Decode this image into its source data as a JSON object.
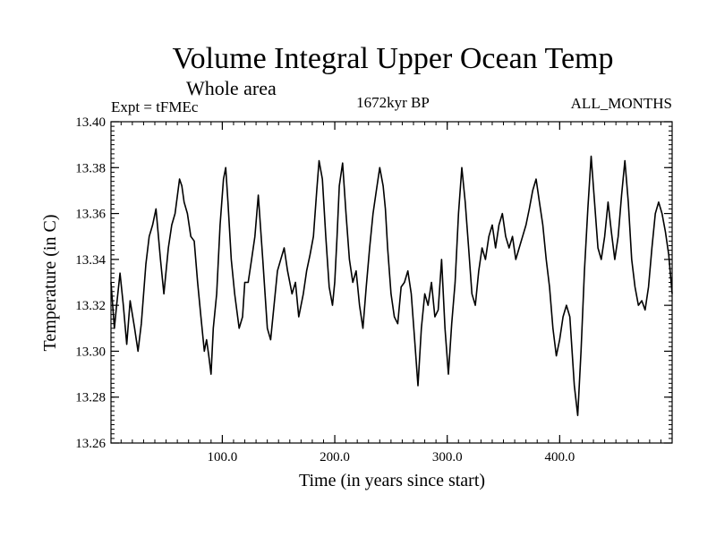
{
  "chart_data": {
    "type": "line",
    "title": "Volume Integral Upper Ocean Temp",
    "subtitle": "Whole area",
    "experiment": "Expt = tFMEc",
    "period": "1672kyr BP",
    "months": "ALL_MONTHS",
    "xlabel": "Time (in years since start)",
    "ylabel": "Temperature (in C)",
    "xlim": [
      1,
      500
    ],
    "ylim": [
      13.26,
      13.4
    ],
    "x_ticks": [
      "100.0",
      "200.0",
      "300.0",
      "400.0"
    ],
    "x_tick_values": [
      100,
      200,
      300,
      400
    ],
    "y_ticks": [
      "13.26",
      "13.28",
      "13.30",
      "13.32",
      "13.34",
      "13.36",
      "13.38",
      "13.40"
    ],
    "y_tick_values": [
      13.26,
      13.28,
      13.3,
      13.32,
      13.34,
      13.36,
      13.38,
      13.4
    ],
    "grid": false,
    "series": [
      {
        "name": "Volume integral upper ocean temperature",
        "color": "#000000",
        "x": [
          1,
          4,
          6,
          9,
          12,
          15,
          18,
          22,
          25,
          28,
          32,
          35,
          38,
          41,
          45,
          48,
          52,
          55,
          58,
          62,
          64,
          66,
          69,
          72,
          75,
          78,
          81,
          84,
          86,
          88,
          90,
          92,
          95,
          98,
          101,
          103,
          105,
          108,
          111,
          115,
          118,
          120,
          123,
          126,
          129,
          132,
          136,
          140,
          143,
          146,
          149,
          152,
          155,
          158,
          162,
          165,
          168,
          172,
          175,
          178,
          181,
          184,
          186,
          189,
          192,
          195,
          198,
          200,
          202,
          204,
          207,
          210,
          213,
          216,
          219,
          222,
          225,
          228,
          231,
          234,
          237,
          240,
          243,
          245,
          247,
          250,
          253,
          256,
          259,
          262,
          265,
          268,
          271,
          274,
          277,
          280,
          283,
          286,
          289,
          292,
          295,
          298,
          301,
          304,
          307,
          310,
          313,
          316,
          319,
          322,
          325,
          328,
          331,
          334,
          337,
          340,
          343,
          346,
          349,
          352,
          355,
          358,
          361,
          364,
          367,
          370,
          373,
          376,
          379,
          382,
          385,
          388,
          391,
          394,
          397,
          400,
          403,
          406,
          409,
          411,
          413,
          416,
          419,
          422,
          425,
          428,
          431,
          434,
          437,
          440,
          443,
          446,
          449,
          452,
          455,
          458,
          461,
          464,
          467,
          470,
          473,
          476,
          479,
          482,
          485,
          488,
          491,
          494,
          497,
          500
        ],
        "values": [
          13.33,
          13.31,
          13.32,
          13.334,
          13.32,
          13.303,
          13.322,
          13.31,
          13.3,
          13.312,
          13.338,
          13.35,
          13.355,
          13.362,
          13.34,
          13.325,
          13.345,
          13.355,
          13.36,
          13.375,
          13.372,
          13.365,
          13.36,
          13.35,
          13.348,
          13.33,
          13.315,
          13.3,
          13.305,
          13.298,
          13.29,
          13.31,
          13.325,
          13.355,
          13.375,
          13.38,
          13.365,
          13.34,
          13.325,
          13.31,
          13.315,
          13.33,
          13.33,
          13.34,
          13.35,
          13.368,
          13.34,
          13.31,
          13.305,
          13.32,
          13.335,
          13.34,
          13.345,
          13.335,
          13.325,
          13.33,
          13.315,
          13.325,
          13.335,
          13.342,
          13.35,
          13.37,
          13.383,
          13.375,
          13.35,
          13.328,
          13.32,
          13.33,
          13.35,
          13.372,
          13.382,
          13.36,
          13.34,
          13.33,
          13.335,
          13.32,
          13.31,
          13.328,
          13.345,
          13.36,
          13.37,
          13.38,
          13.372,
          13.362,
          13.345,
          13.325,
          13.315,
          13.312,
          13.328,
          13.33,
          13.335,
          13.325,
          13.305,
          13.285,
          13.31,
          13.325,
          13.32,
          13.33,
          13.315,
          13.318,
          13.34,
          13.31,
          13.29,
          13.312,
          13.33,
          13.36,
          13.38,
          13.365,
          13.345,
          13.325,
          13.32,
          13.335,
          13.345,
          13.34,
          13.35,
          13.355,
          13.345,
          13.355,
          13.36,
          13.35,
          13.345,
          13.35,
          13.34,
          13.345,
          13.35,
          13.355,
          13.362,
          13.37,
          13.375,
          13.365,
          13.355,
          13.34,
          13.328,
          13.31,
          13.298,
          13.305,
          13.315,
          13.32,
          13.315,
          13.3,
          13.285,
          13.272,
          13.3,
          13.335,
          13.362,
          13.385,
          13.365,
          13.345,
          13.34,
          13.35,
          13.365,
          13.352,
          13.34,
          13.35,
          13.368,
          13.383,
          13.365,
          13.34,
          13.328,
          13.32,
          13.322,
          13.318,
          13.328,
          13.345,
          13.36,
          13.365,
          13.36,
          13.352,
          13.342,
          13.325
        ]
      }
    ]
  }
}
